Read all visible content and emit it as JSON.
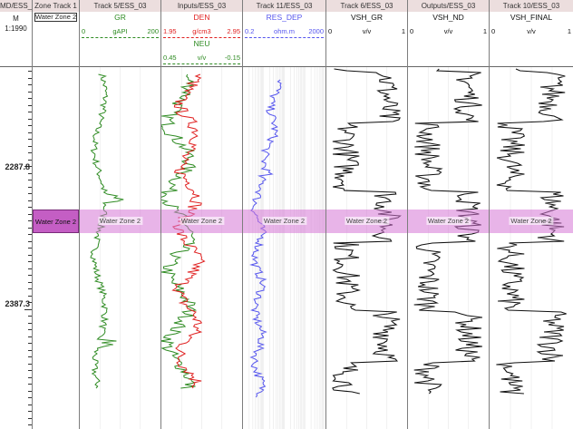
{
  "tracks": {
    "depth": {
      "title": "MD/ESS_",
      "unit": "M",
      "scale": "1:1990",
      "depth_labels": [
        "2287.8",
        "2387.3"
      ]
    },
    "zone": {
      "title": "Zone Track 1",
      "header_zone": "Water Zone 2",
      "zone_label": "Water Zone 2"
    },
    "gr": {
      "title": "Track 5/ESS_03",
      "curve": "GR",
      "min": "0",
      "unit": "gAPI",
      "max": "200"
    },
    "inputs": {
      "title": "Inputs/ESS_03",
      "den": {
        "curve": "DEN",
        "min": "1.95",
        "unit": "g/cm3",
        "max": "2.95"
      },
      "neu": {
        "curve": "NEU",
        "min": "0.45",
        "unit": "v/v",
        "max": "-0.15"
      }
    },
    "res": {
      "title": "Track 11/ESS_03",
      "curve": "RES_DEP",
      "min": "0.2",
      "unit": "ohm.m",
      "max": "2000"
    },
    "vsh_gr": {
      "title": "Track 6/ESS_03",
      "curve": "VSH_GR",
      "min": "0",
      "unit": "v/v",
      "max": "1"
    },
    "vsh_nd": {
      "title": "Outputs/ESS_03",
      "curve": "VSH_ND",
      "min": "0",
      "unit": "v/v",
      "max": "1"
    },
    "vsh_final": {
      "title": "Track 10/ESS_03",
      "curve": "VSH_FINAL",
      "min": "0",
      "unit": "v/v",
      "max": "1"
    }
  },
  "zone_band_label": "Water Zone 2",
  "colors": {
    "gr": "#2e8b22",
    "den": "#e02020",
    "neu": "#2e8b22",
    "res": "#5555ee",
    "vsh": "#111111",
    "zone": "#d676d6"
  }
}
